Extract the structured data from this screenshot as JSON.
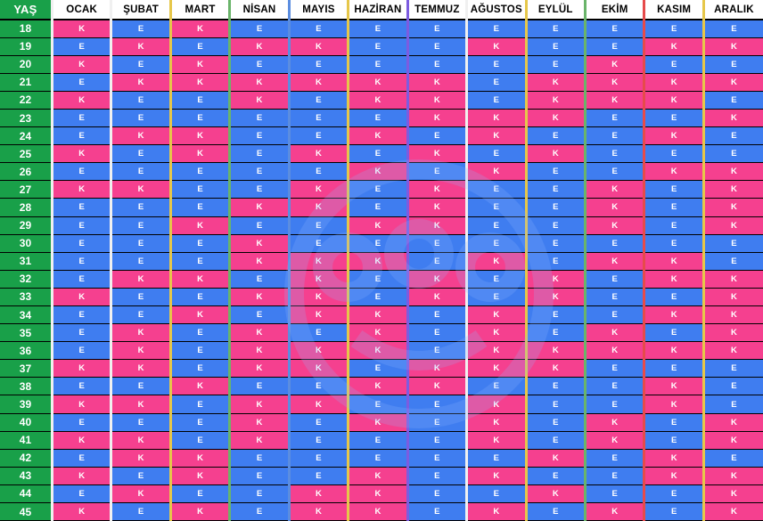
{
  "header_age": "YAŞ",
  "months": [
    "OCAK",
    "ŞUBAT",
    "MART",
    "NİSAN",
    "MAYIS",
    "HAZİRAN",
    "TEMMUZ",
    "AĞUSTOS",
    "EYLÜL",
    "EKİM",
    "KASIM",
    "ARALIK"
  ],
  "month_separator_colors": [
    "#f0f0f0",
    "#f0f0f0",
    "#e6c74a",
    "#6ab46a",
    "#5b8de0",
    "#e6c74a",
    "#7c5ce0",
    "#f0f0f0",
    "#e6c74a",
    "#6ab46a",
    "#e64b4b",
    "#e6c74a"
  ],
  "colors": {
    "E": "#3f7df0",
    "K": "#f5408f",
    "age_column": "#19a049"
  },
  "rows": [
    {
      "age": "18",
      "cells": [
        "K",
        "E",
        "K",
        "E",
        "E",
        "E",
        "E",
        "E",
        "E",
        "E",
        "E",
        "E"
      ]
    },
    {
      "age": "19",
      "cells": [
        "E",
        "K",
        "E",
        "K",
        "K",
        "E",
        "E",
        "K",
        "E",
        "E",
        "K",
        "K"
      ]
    },
    {
      "age": "20",
      "cells": [
        "K",
        "E",
        "K",
        "E",
        "E",
        "E",
        "E",
        "E",
        "E",
        "K",
        "E",
        "E"
      ]
    },
    {
      "age": "21",
      "cells": [
        "E",
        "K",
        "K",
        "K",
        "K",
        "K",
        "K",
        "E",
        "K",
        "K",
        "K",
        "K"
      ]
    },
    {
      "age": "22",
      "cells": [
        "K",
        "E",
        "E",
        "K",
        "E",
        "K",
        "K",
        "E",
        "K",
        "K",
        "K",
        "E"
      ]
    },
    {
      "age": "23",
      "cells": [
        "E",
        "E",
        "E",
        "E",
        "E",
        "E",
        "K",
        "K",
        "K",
        "E",
        "E",
        "K"
      ]
    },
    {
      "age": "24",
      "cells": [
        "E",
        "K",
        "K",
        "E",
        "E",
        "K",
        "E",
        "K",
        "E",
        "E",
        "K",
        "E"
      ]
    },
    {
      "age": "25",
      "cells": [
        "K",
        "E",
        "K",
        "E",
        "K",
        "E",
        "K",
        "E",
        "K",
        "E",
        "E",
        "E"
      ]
    },
    {
      "age": "26",
      "cells": [
        "E",
        "E",
        "E",
        "E",
        "E",
        "K",
        "E",
        "K",
        "E",
        "E",
        "K",
        "K"
      ]
    },
    {
      "age": "27",
      "cells": [
        "K",
        "K",
        "E",
        "E",
        "K",
        "E",
        "K",
        "E",
        "E",
        "K",
        "E",
        "K"
      ]
    },
    {
      "age": "28",
      "cells": [
        "E",
        "E",
        "E",
        "K",
        "K",
        "E",
        "K",
        "E",
        "E",
        "K",
        "E",
        "K"
      ]
    },
    {
      "age": "29",
      "cells": [
        "E",
        "E",
        "K",
        "E",
        "E",
        "K",
        "K",
        "E",
        "E",
        "K",
        "E",
        "K"
      ]
    },
    {
      "age": "30",
      "cells": [
        "E",
        "E",
        "E",
        "K",
        "E",
        "E",
        "E",
        "E",
        "E",
        "E",
        "E",
        "E"
      ]
    },
    {
      "age": "31",
      "cells": [
        "E",
        "E",
        "E",
        "K",
        "K",
        "K",
        "E",
        "K",
        "E",
        "K",
        "K",
        "E"
      ]
    },
    {
      "age": "32",
      "cells": [
        "E",
        "K",
        "K",
        "E",
        "K",
        "E",
        "K",
        "E",
        "K",
        "E",
        "K",
        "K"
      ]
    },
    {
      "age": "33",
      "cells": [
        "K",
        "E",
        "E",
        "K",
        "K",
        "E",
        "K",
        "E",
        "K",
        "E",
        "E",
        "K"
      ]
    },
    {
      "age": "34",
      "cells": [
        "E",
        "E",
        "K",
        "E",
        "K",
        "K",
        "E",
        "K",
        "E",
        "E",
        "K",
        "K"
      ]
    },
    {
      "age": "35",
      "cells": [
        "E",
        "K",
        "E",
        "K",
        "E",
        "K",
        "E",
        "K",
        "E",
        "K",
        "E",
        "K"
      ]
    },
    {
      "age": "36",
      "cells": [
        "E",
        "K",
        "E",
        "K",
        "K",
        "K",
        "E",
        "K",
        "K",
        "K",
        "K",
        "K"
      ]
    },
    {
      "age": "37",
      "cells": [
        "K",
        "K",
        "E",
        "K",
        "K",
        "E",
        "K",
        "K",
        "K",
        "E",
        "E",
        "E"
      ]
    },
    {
      "age": "38",
      "cells": [
        "E",
        "E",
        "K",
        "E",
        "E",
        "K",
        "K",
        "E",
        "E",
        "E",
        "K",
        "E"
      ]
    },
    {
      "age": "39",
      "cells": [
        "K",
        "K",
        "E",
        "K",
        "K",
        "E",
        "E",
        "K",
        "E",
        "E",
        "K",
        "E"
      ]
    },
    {
      "age": "40",
      "cells": [
        "E",
        "E",
        "E",
        "K",
        "E",
        "K",
        "E",
        "K",
        "E",
        "K",
        "E",
        "K"
      ]
    },
    {
      "age": "41",
      "cells": [
        "K",
        "K",
        "E",
        "K",
        "E",
        "E",
        "E",
        "K",
        "E",
        "K",
        "E",
        "K"
      ]
    },
    {
      "age": "42",
      "cells": [
        "E",
        "K",
        "K",
        "E",
        "E",
        "E",
        "E",
        "E",
        "K",
        "E",
        "K",
        "E"
      ]
    },
    {
      "age": "43",
      "cells": [
        "K",
        "E",
        "K",
        "E",
        "E",
        "K",
        "E",
        "K",
        "E",
        "E",
        "K",
        "K"
      ]
    },
    {
      "age": "44",
      "cells": [
        "E",
        "K",
        "E",
        "E",
        "K",
        "K",
        "E",
        "E",
        "K",
        "E",
        "E",
        "K"
      ]
    },
    {
      "age": "45",
      "cells": [
        "K",
        "E",
        "K",
        "E",
        "K",
        "K",
        "E",
        "K",
        "E",
        "K",
        "E",
        "K"
      ]
    }
  ]
}
